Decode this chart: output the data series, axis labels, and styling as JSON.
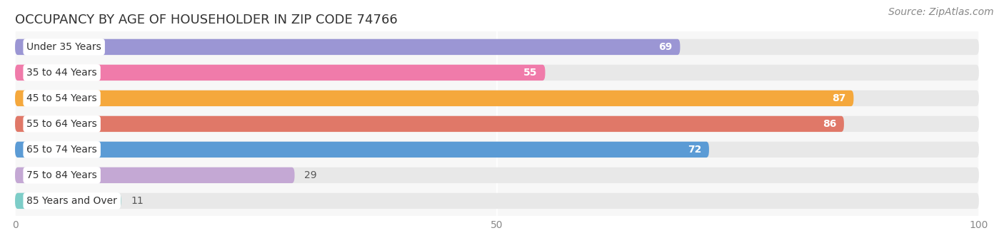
{
  "title": "OCCUPANCY BY AGE OF HOUSEHOLDER IN ZIP CODE 74766",
  "source": "Source: ZipAtlas.com",
  "categories": [
    "Under 35 Years",
    "35 to 44 Years",
    "45 to 54 Years",
    "55 to 64 Years",
    "65 to 74 Years",
    "75 to 84 Years",
    "85 Years and Over"
  ],
  "values": [
    69,
    55,
    87,
    86,
    72,
    29,
    11
  ],
  "bar_colors": [
    "#9b96d4",
    "#f07baa",
    "#f5a83c",
    "#e07868",
    "#5b9bd5",
    "#c4a8d4",
    "#7dcdc8"
  ],
  "track_color": "#e8e8e8",
  "label_bg_color": "#ffffff",
  "xlim": [
    0,
    100
  ],
  "xticks": [
    0,
    50,
    100
  ],
  "title_fontsize": 13,
  "source_fontsize": 10,
  "label_fontsize": 10,
  "value_fontsize": 10,
  "bg_color": "#ffffff",
  "plot_bg_color": "#f7f7f7"
}
